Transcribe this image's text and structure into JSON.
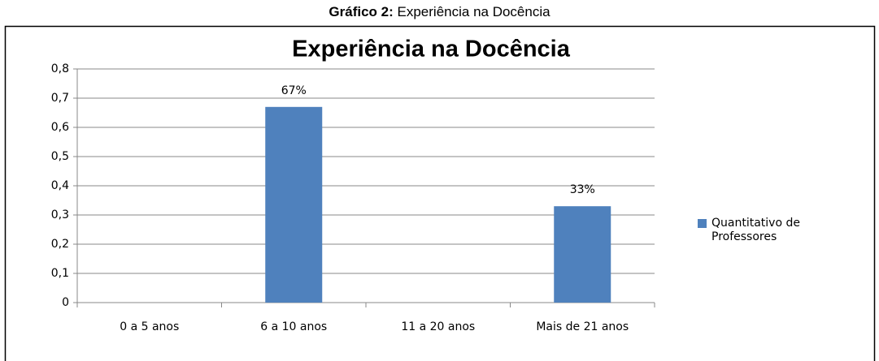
{
  "caption_label": "Gráfico 2:",
  "caption_text": "Experiência na Docência",
  "chart_data": {
    "type": "bar",
    "title": "Experiência  na Docência",
    "categories": [
      "0 a 5 anos",
      "6 a 10 anos",
      "11 a 20 anos",
      "Mais de 21 anos"
    ],
    "series": [
      {
        "name": "Quantitativo de Professores",
        "color": "#4f81bd",
        "values": [
          null,
          0.67,
          null,
          0.33
        ],
        "value_labels": [
          null,
          "67%",
          null,
          "33%"
        ]
      }
    ],
    "ylim": [
      0,
      0.8
    ],
    "yticks": [
      0,
      {
        "value": 0.1,
        "label": "0,1"
      },
      {
        "value": 0.2,
        "label": "0,2"
      },
      {
        "value": 0.3,
        "label": "0,3"
      },
      {
        "value": 0.4,
        "label": "0,4"
      },
      {
        "value": 0.5,
        "label": "0,5"
      },
      {
        "value": 0.6,
        "label": "0,6"
      },
      {
        "value": 0.7,
        "label": "0,7"
      },
      {
        "value": 0.8,
        "label": "0,8"
      }
    ],
    "grid": true,
    "legend": "right"
  }
}
